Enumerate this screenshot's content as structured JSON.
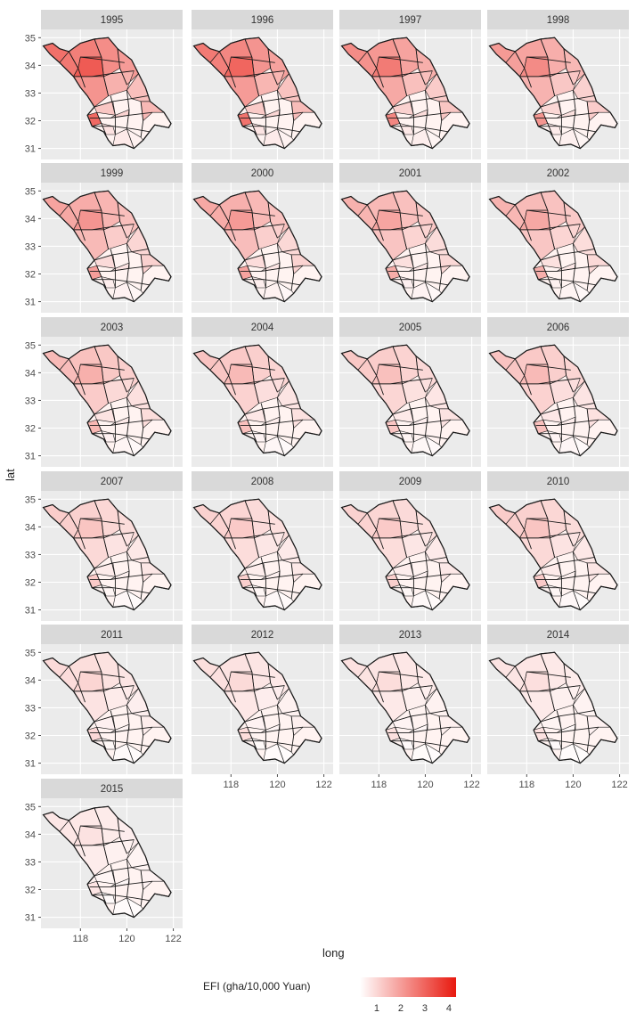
{
  "chart_data": {
    "type": "heatmap",
    "facet_years": [
      "1995",
      "1996",
      "1997",
      "1998",
      "1999",
      "2000",
      "2001",
      "2002",
      "2003",
      "2004",
      "2005",
      "2006",
      "2007",
      "2008",
      "2009",
      "2010",
      "2011",
      "2012",
      "2013",
      "2014",
      "2015"
    ],
    "facet_intensity": [
      0.62,
      0.58,
      0.5,
      0.44,
      0.4,
      0.38,
      0.34,
      0.33,
      0.3,
      0.26,
      0.24,
      0.26,
      0.22,
      0.2,
      0.2,
      0.22,
      0.16,
      0.14,
      0.13,
      0.12,
      0.11
    ],
    "xlabel": "long",
    "ylabel": "lat",
    "x_ticks": [
      118,
      120,
      122
    ],
    "y_ticks": [
      31,
      32,
      33,
      34,
      35
    ],
    "xlim": [
      116.3,
      122.4
    ],
    "ylim": [
      30.6,
      35.3
    ],
    "legend": {
      "title": "EFI (gha/10,000 Yuan)",
      "ticks": [
        1,
        2,
        3,
        4
      ],
      "range": [
        0.3,
        4.3
      ],
      "low_color": "#ffffff",
      "high_color": "#e8190f"
    },
    "colors": {
      "panel_bg": "#ebebeb",
      "strip_bg": "#d9d9d9",
      "grid": "#ffffff",
      "border": "#1a1a1a"
    }
  }
}
